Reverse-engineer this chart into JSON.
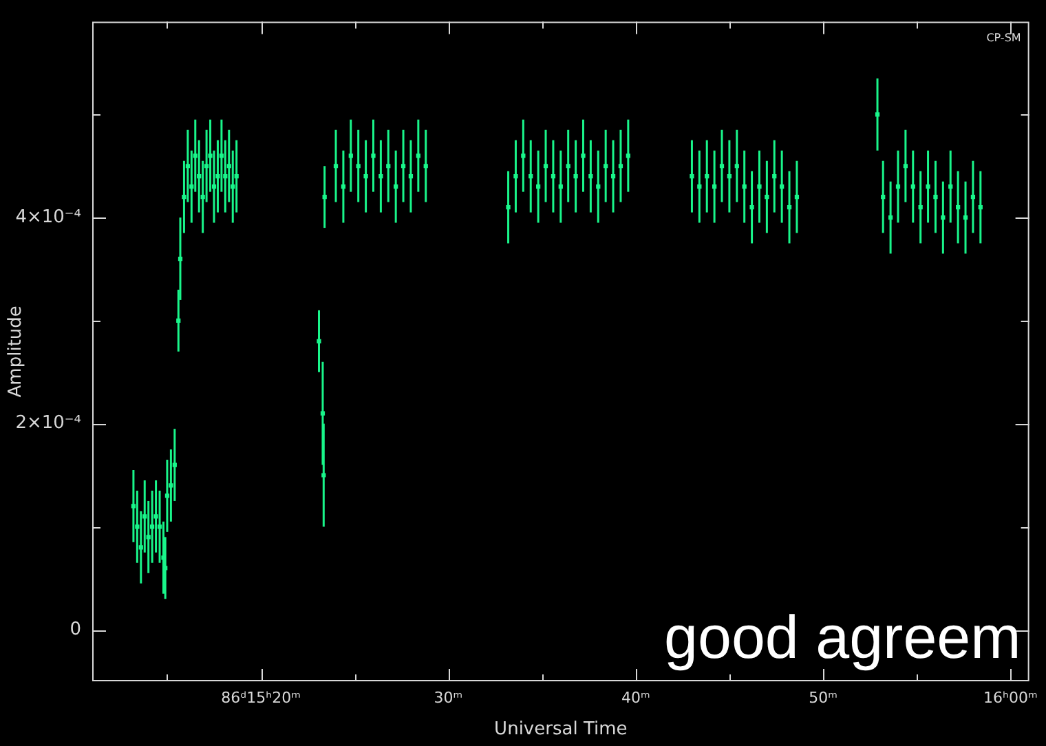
{
  "chart_data": {
    "type": "scatter",
    "xlabel": "Universal Time",
    "ylabel": "Amplitude",
    "annotations": [
      "CP-SM",
      "good agreem"
    ],
    "xlim": [
      11,
      61
    ],
    "ylim": [
      -5e-05,
      0.00059
    ],
    "xticks": [
      {
        "value": 15,
        "label": null
      },
      {
        "value": 20,
        "label": "86ᵈ15ʰ20ᵐ"
      },
      {
        "value": 25,
        "label": null
      },
      {
        "value": 30,
        "label": "30ᵐ"
      },
      {
        "value": 35,
        "label": null
      },
      {
        "value": 40,
        "label": "40ᵐ"
      },
      {
        "value": 45,
        "label": null
      },
      {
        "value": 50,
        "label": "50ᵐ"
      },
      {
        "value": 55,
        "label": null
      },
      {
        "value": 60,
        "label": "16ʰ00ᵐ"
      }
    ],
    "yticks": [
      {
        "value": 0,
        "label": "0"
      },
      {
        "value": 0.0001,
        "label": null
      },
      {
        "value": 0.0002,
        "label": "2×10⁻⁴"
      },
      {
        "value": 0.0003,
        "label": null
      },
      {
        "value": 0.0004,
        "label": "4×10⁻⁴"
      },
      {
        "value": 0.0005,
        "label": null
      }
    ],
    "grid": false,
    "legend": false,
    "marker": "square",
    "series": [
      {
        "color": "#19f58a",
        "x": [
          13.2,
          13.4,
          13.6,
          13.8,
          14.0,
          14.2,
          14.4,
          14.6,
          14.8,
          14.9,
          15.0,
          15.2,
          15.4,
          15.6,
          15.7,
          15.9,
          16.1,
          16.3,
          16.5,
          16.7,
          16.9,
          17.1,
          17.3,
          17.5,
          17.7,
          17.9,
          18.1,
          18.3,
          18.5,
          18.7,
          23.1,
          23.3,
          23.35,
          23.4,
          24.0,
          24.4,
          24.8,
          25.2,
          25.6,
          26.0,
          26.4,
          26.8,
          27.2,
          27.6,
          28.0,
          28.4,
          28.8,
          33.2,
          33.6,
          34.0,
          34.4,
          34.8,
          35.2,
          35.6,
          36.0,
          36.4,
          36.8,
          37.2,
          37.6,
          38.0,
          38.4,
          38.8,
          39.2,
          39.6,
          43.0,
          43.4,
          43.8,
          44.2,
          44.6,
          45.0,
          45.4,
          45.8,
          46.2,
          46.6,
          47.0,
          47.4,
          47.8,
          48.2,
          48.6,
          52.9,
          53.2,
          53.6,
          54.0,
          54.4,
          54.8,
          55.2,
          55.6,
          56.0,
          56.4,
          56.8,
          57.2,
          57.6,
          58.0,
          58.4
        ],
        "values": [
          0.00012,
          0.0001,
          8e-05,
          0.00011,
          9e-05,
          0.0001,
          0.00011,
          0.0001,
          7e-05,
          6e-05,
          0.00013,
          0.00014,
          0.00016,
          0.0003,
          0.00036,
          0.00042,
          0.00045,
          0.00043,
          0.00046,
          0.00044,
          0.00042,
          0.00045,
          0.00046,
          0.00043,
          0.00044,
          0.00046,
          0.00044,
          0.00045,
          0.00043,
          0.00044,
          0.00028,
          0.00021,
          0.00015,
          0.00042,
          0.00045,
          0.00043,
          0.00046,
          0.00045,
          0.00044,
          0.00046,
          0.00044,
          0.00045,
          0.00043,
          0.00045,
          0.00044,
          0.00046,
          0.00045,
          0.00041,
          0.00044,
          0.00046,
          0.00044,
          0.00043,
          0.00045,
          0.00044,
          0.00043,
          0.00045,
          0.00044,
          0.00046,
          0.00044,
          0.00043,
          0.00045,
          0.00044,
          0.00045,
          0.00046,
          0.00044,
          0.00043,
          0.00044,
          0.00043,
          0.00045,
          0.00044,
          0.00045,
          0.00043,
          0.00041,
          0.00043,
          0.00042,
          0.00044,
          0.00043,
          0.00041,
          0.00042,
          0.0005,
          0.00042,
          0.0004,
          0.00043,
          0.00045,
          0.00043,
          0.00041,
          0.00043,
          0.00042,
          0.0004,
          0.00043,
          0.00041,
          0.0004,
          0.00042,
          0.00041
        ],
        "errors": [
          3.5e-05,
          3.5e-05,
          3.5e-05,
          3.5e-05,
          3.5e-05,
          3.5e-05,
          3.5e-05,
          3.5e-05,
          3.5e-05,
          3e-05,
          3.5e-05,
          3.5e-05,
          3.5e-05,
          3e-05,
          4e-05,
          3.5e-05,
          3.5e-05,
          3.5e-05,
          3.5e-05,
          3.5e-05,
          3.5e-05,
          3.5e-05,
          3.5e-05,
          3.5e-05,
          3.5e-05,
          3.5e-05,
          3.5e-05,
          3.5e-05,
          3.5e-05,
          3.5e-05,
          3e-05,
          5e-05,
          5e-05,
          3e-05,
          3.5e-05,
          3.5e-05,
          3.5e-05,
          3.5e-05,
          3.5e-05,
          3.5e-05,
          3.5e-05,
          3.5e-05,
          3.5e-05,
          3.5e-05,
          3.5e-05,
          3.5e-05,
          3.5e-05,
          3.5e-05,
          3.5e-05,
          3.5e-05,
          3.5e-05,
          3.5e-05,
          3.5e-05,
          3.5e-05,
          3.5e-05,
          3.5e-05,
          3.5e-05,
          3.5e-05,
          3.5e-05,
          3.5e-05,
          3.5e-05,
          3.5e-05,
          3.5e-05,
          3.5e-05,
          3.5e-05,
          3.5e-05,
          3.5e-05,
          3.5e-05,
          3.5e-05,
          3.5e-05,
          3.5e-05,
          3.5e-05,
          3.5e-05,
          3.5e-05,
          3.5e-05,
          3.5e-05,
          3.5e-05,
          3.5e-05,
          3.5e-05,
          3.5e-05,
          3.5e-05,
          3.5e-05,
          3.5e-05,
          3.5e-05,
          3.5e-05,
          3.5e-05,
          3.5e-05,
          3.5e-05,
          3.5e-05,
          3.5e-05,
          3.5e-05,
          3.5e-05,
          3.5e-05,
          3.5e-05
        ]
      }
    ]
  }
}
